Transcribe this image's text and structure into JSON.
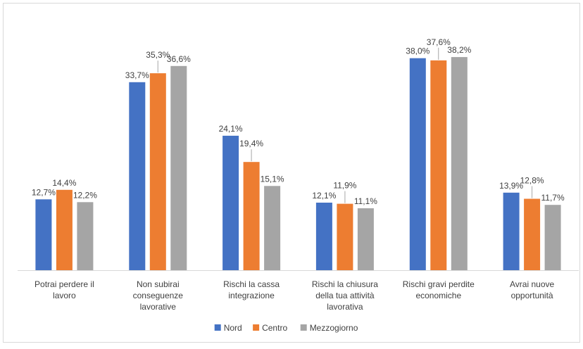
{
  "chart_data": {
    "type": "bar",
    "categories": [
      [
        "Potrai perdere il",
        "lavoro"
      ],
      [
        "Non subirai",
        "conseguenze",
        "lavorative"
      ],
      [
        "Rischi la cassa",
        "integrazione"
      ],
      [
        "Rischi la chiusura",
        "della tua attività",
        "lavorativa"
      ],
      [
        "Rischi gravi perdite",
        "economiche"
      ],
      [
        "Avrai nuove",
        "opportunità"
      ]
    ],
    "series": [
      {
        "name": "Nord",
        "color": "#4472C4",
        "values": [
          12.7,
          33.7,
          24.1,
          12.1,
          38.0,
          13.9
        ],
        "labels": [
          "12,7%",
          "33,7%",
          "24,1%",
          "12,1%",
          "38,0%",
          "13,9%"
        ]
      },
      {
        "name": "Centro",
        "color": "#ED7D31",
        "values": [
          14.4,
          35.3,
          19.4,
          11.9,
          37.6,
          12.8
        ],
        "labels": [
          "14,4%",
          "35,3%",
          "19,4%",
          "11,9%",
          "37,6%",
          "12,8%"
        ]
      },
      {
        "name": "Mezzogiorno",
        "color": "#A5A5A5",
        "values": [
          12.2,
          36.6,
          15.1,
          11.1,
          38.2,
          11.7
        ],
        "labels": [
          "12,2%",
          "36,6%",
          "15,1%",
          "11,1%",
          "38,2%",
          "11,7%"
        ]
      }
    ],
    "ylim": [
      0,
      40
    ],
    "grid": false,
    "legend": "bottom"
  }
}
